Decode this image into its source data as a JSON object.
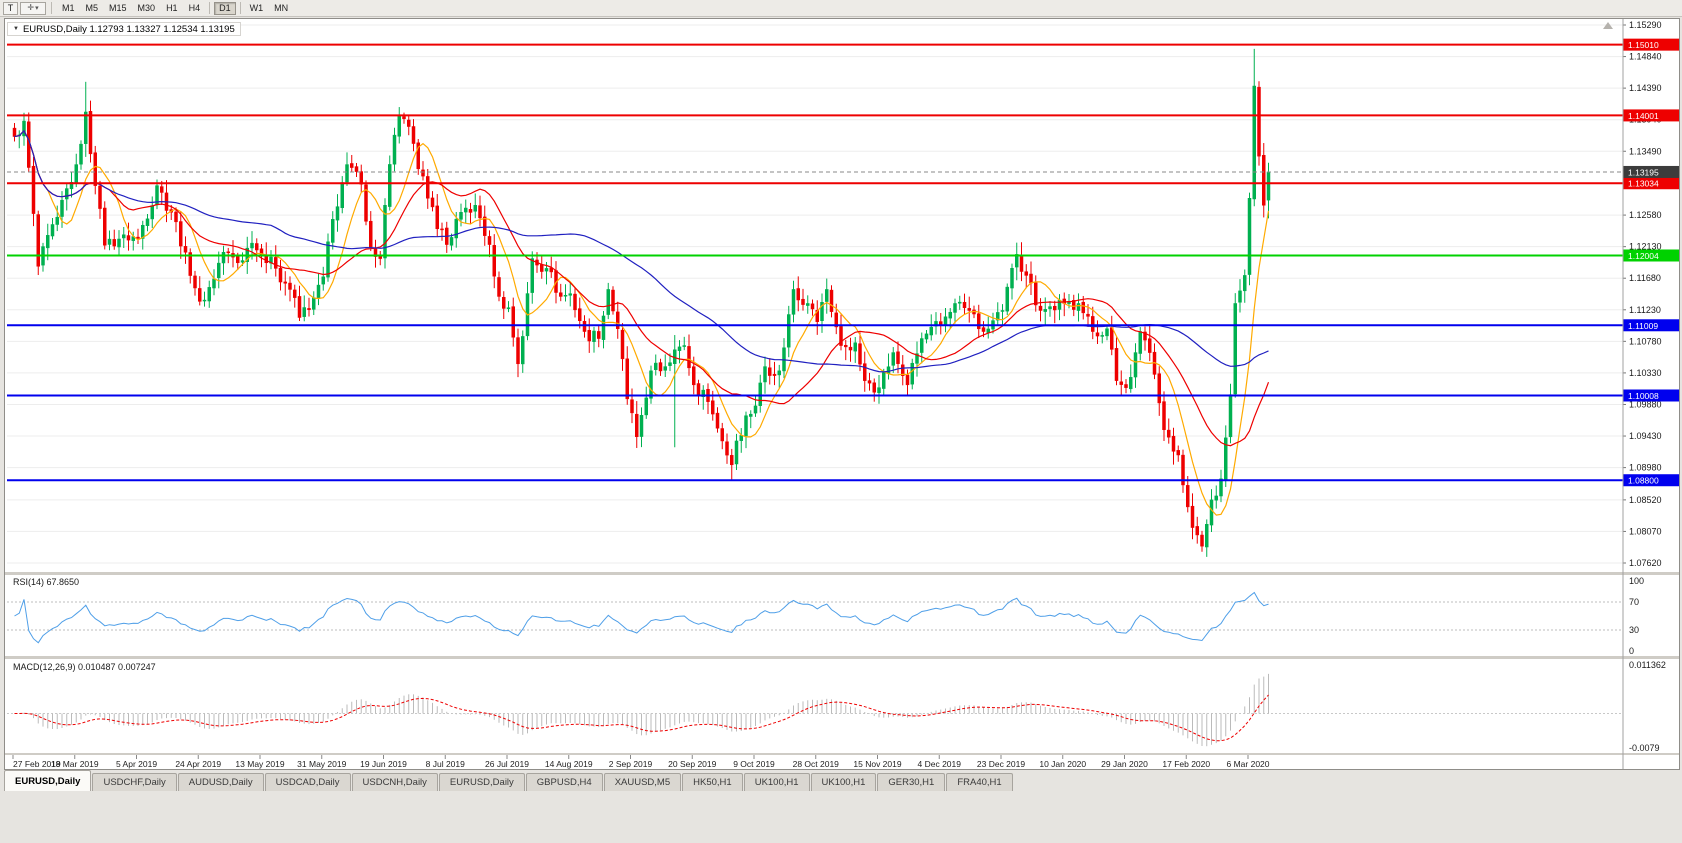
{
  "toolbar": {
    "template_button_label": "T",
    "timeframes": [
      "M1",
      "M5",
      "M15",
      "M30",
      "H1",
      "H4",
      "D1",
      "W1",
      "MN"
    ],
    "active_timeframe": "D1",
    "group_breaks": [
      "D1",
      "W1"
    ]
  },
  "chart": {
    "title": "EURUSD,Daily 1.12793 1.13327 1.12534 1.13195"
  },
  "chart_data": {
    "type": "candlestick",
    "symbol": "EURUSD",
    "period": "Daily",
    "bars_total": 265,
    "ohlc_current": {
      "open": 1.12793,
      "high": 1.13327,
      "low": 1.12534,
      "close": 1.13195
    },
    "current_price": 1.13195,
    "current_price_label": "1.13195",
    "y_axis_ticks": [
      1.1529,
      1.1484,
      1.1439,
      1.1394,
      1.1349,
      1.1304,
      1.1258,
      1.1213,
      1.1168,
      1.1123,
      1.1078,
      1.1033,
      1.0988,
      1.0943,
      1.0898,
      1.0852,
      1.0807,
      1.0762
    ],
    "horizontal_levels": [
      {
        "price": 1.1501,
        "color": "#ee0000",
        "label": "1.15010"
      },
      {
        "price": 1.14001,
        "color": "#ee0000",
        "label": "1.14001"
      },
      {
        "price": 1.13034,
        "color": "#ee0000",
        "label": "1.13034"
      },
      {
        "price": 1.12004,
        "color": "#00d200",
        "label": "1.12004"
      },
      {
        "price": 1.11009,
        "color": "#0000ee",
        "label": "1.11009"
      },
      {
        "price": 1.10008,
        "color": "#0000ee",
        "label": "1.10008"
      },
      {
        "price": 1.088,
        "color": "#0000ee",
        "label": "1.08800"
      }
    ],
    "close_path_anchors": [
      [
        0,
        1.137
      ],
      [
        2,
        1.1392
      ],
      [
        5,
        1.1185
      ],
      [
        9,
        1.1255
      ],
      [
        13,
        1.133
      ],
      [
        15,
        1.1405
      ],
      [
        17,
        1.13
      ],
      [
        19,
        1.1215
      ],
      [
        23,
        1.123
      ],
      [
        26,
        1.1225
      ],
      [
        30,
        1.13
      ],
      [
        33,
        1.1262
      ],
      [
        36,
        1.1205
      ],
      [
        39,
        1.1135
      ],
      [
        41,
        1.1155
      ],
      [
        44,
        1.1205
      ],
      [
        47,
        1.119
      ],
      [
        50,
        1.1218
      ],
      [
        52,
        1.12
      ],
      [
        55,
        1.1182
      ],
      [
        58,
        1.1152
      ],
      [
        60,
        1.1112
      ],
      [
        63,
        1.114
      ],
      [
        65,
        1.117
      ],
      [
        67,
        1.1252
      ],
      [
        70,
        1.133
      ],
      [
        73,
        1.1302
      ],
      [
        75,
        1.1212
      ],
      [
        77,
        1.1196
      ],
      [
        78,
        1.1272
      ],
      [
        80,
        1.1372
      ],
      [
        81,
        1.14
      ],
      [
        84,
        1.136
      ],
      [
        87,
        1.1282
      ],
      [
        91,
        1.1216
      ],
      [
        94,
        1.1262
      ],
      [
        97,
        1.1272
      ],
      [
        100,
        1.1216
      ],
      [
        102,
        1.1142
      ],
      [
        104,
        1.1126
      ],
      [
        106,
        1.1046
      ],
      [
        107,
        1.1085
      ],
      [
        109,
        1.1196
      ],
      [
        112,
        1.1182
      ],
      [
        115,
        1.1142
      ],
      [
        117,
        1.1146
      ],
      [
        120,
        1.1092
      ],
      [
        123,
        1.1082
      ],
      [
        125,
        1.1152
      ],
      [
        127,
        1.1096
      ],
      [
        129,
        1.0996
      ],
      [
        131,
        1.0942
      ],
      [
        134,
        1.1036
      ],
      [
        137,
        1.1042
      ],
      [
        139,
        1.1066
      ],
      [
        141,
        1.1072
      ],
      [
        143,
        1.1016
      ],
      [
        146,
        1.0992
      ],
      [
        149,
        1.0936
      ],
      [
        151,
        1.0902
      ],
      [
        152,
        1.0936
      ],
      [
        154,
        1.0972
      ],
      [
        156,
        1.0986
      ],
      [
        158,
        1.1042
      ],
      [
        161,
        1.1036
      ],
      [
        164,
        1.1152
      ],
      [
        167,
        1.1132
      ],
      [
        169,
        1.1106
      ],
      [
        171,
        1.1152
      ],
      [
        174,
        1.1072
      ],
      [
        177,
        1.1076
      ],
      [
        179,
        1.1022
      ],
      [
        182,
        1.1012
      ],
      [
        185,
        1.1062
      ],
      [
        188,
        1.1016
      ],
      [
        191,
        1.1082
      ],
      [
        195,
        1.1102
      ],
      [
        198,
        1.1132
      ],
      [
        201,
        1.1122
      ],
      [
        204,
        1.1092
      ],
      [
        208,
        1.1122
      ],
      [
        211,
        1.1202
      ],
      [
        213,
        1.1172
      ],
      [
        216,
        1.1122
      ],
      [
        221,
        1.1132
      ],
      [
        224,
        1.1132
      ],
      [
        227,
        1.1092
      ],
      [
        230,
        1.1096
      ],
      [
        232,
        1.1022
      ],
      [
        234,
        1.1012
      ],
      [
        236,
        1.1062
      ],
      [
        237,
        1.1092
      ],
      [
        239,
        1.1062
      ],
      [
        242,
        1.0952
      ],
      [
        245,
        1.0916
      ],
      [
        247,
        1.0842
      ],
      [
        249,
        1.0802
      ],
      [
        250,
        1.0786
      ],
      [
        252,
        1.0852
      ],
      [
        254,
        1.0882
      ],
      [
        256,
        1.1002
      ],
      [
        257,
        1.1132
      ],
      [
        259,
        1.1172
      ],
      [
        260,
        1.1282
      ],
      [
        261,
        1.1442
      ],
      [
        262,
        1.1342
      ],
      [
        263,
        1.1272
      ],
      [
        264,
        1.13195
      ]
    ],
    "key_extremes": [
      {
        "i": 15,
        "high": 1.1448
      },
      {
        "i": 60,
        "low": 1.1107
      },
      {
        "i": 81,
        "high": 1.1412
      },
      {
        "i": 106,
        "low": 1.1027
      },
      {
        "i": 131,
        "low": 1.0926
      },
      {
        "i": 139,
        "low": 1.0927,
        "high": 1.1087
      },
      {
        "i": 151,
        "low": 1.0879
      },
      {
        "i": 182,
        "low": 1.0989
      },
      {
        "i": 250,
        "low": 1.0778
      },
      {
        "i": 261,
        "high": 1.1495
      }
    ],
    "moving_averages": [
      {
        "period": 8,
        "color": "#ffaa00"
      },
      {
        "period": 21,
        "color": "#ee0000"
      },
      {
        "period": 55,
        "color": "#2020c0"
      }
    ],
    "rsi": {
      "period": 14,
      "current": 67.865,
      "levels": [
        70,
        30
      ]
    },
    "macd": {
      "fast": 12,
      "slow": 26,
      "signal_period": 9,
      "main_current": 0.010487,
      "signal_current": 0.007247,
      "scale_top": 0.011362,
      "scale_bottom": -0.0079
    }
  },
  "rsi_panel": {
    "label": "RSI(14) 67.8650",
    "axis_values": [
      100,
      70,
      30,
      0
    ]
  },
  "macd_panel": {
    "label": "MACD(12,26,9) 0.010487 0.007247",
    "axis_top_label": "0.011362",
    "axis_bottom_label": "-0.0079"
  },
  "date_axis": {
    "bar_step": 13,
    "labels": [
      "27 Feb 2019",
      "18 Mar 2019",
      "5 Apr 2019",
      "24 Apr 2019",
      "13 May 2019",
      "31 May 2019",
      "19 Jun 2019",
      "8 Jul 2019",
      "26 Jul 2019",
      "14 Aug 2019",
      "2 Sep 2019",
      "20 Sep 2019",
      "9 Oct 2019",
      "28 Oct 2019",
      "15 Nov 2019",
      "4 Dec 2019",
      "23 Dec 2019",
      "10 Jan 2020",
      "29 Jan 2020",
      "17 Feb 2020",
      "6 Mar 2020"
    ]
  },
  "tabs": {
    "active_index": 0,
    "items": [
      "EURUSD,Daily",
      "USDCHF,Daily",
      "AUDUSD,Daily",
      "USDCAD,Daily",
      "USDCNH,Daily",
      "EURUSD,Daily",
      "GBPUSD,H4",
      "XAUUSD,M5",
      "HK50,H1",
      "UK100,H1",
      "UK100,H1",
      "GER30,H1",
      "FRA40,H1"
    ]
  },
  "colors": {
    "bull": "#00b050",
    "bear": "#ee0000",
    "ma_fast": "#ffaa00",
    "ma_mid": "#ee0000",
    "ma_slow": "#2020c0",
    "rsi_line": "#4f9fe8",
    "macd_hist": "#bbbbbb",
    "macd_signal": "#ee0000",
    "grid": "#ededed",
    "current_line": "#888888",
    "current_badge": "#3c3c3c",
    "axis_text": "#1a1a1a"
  }
}
